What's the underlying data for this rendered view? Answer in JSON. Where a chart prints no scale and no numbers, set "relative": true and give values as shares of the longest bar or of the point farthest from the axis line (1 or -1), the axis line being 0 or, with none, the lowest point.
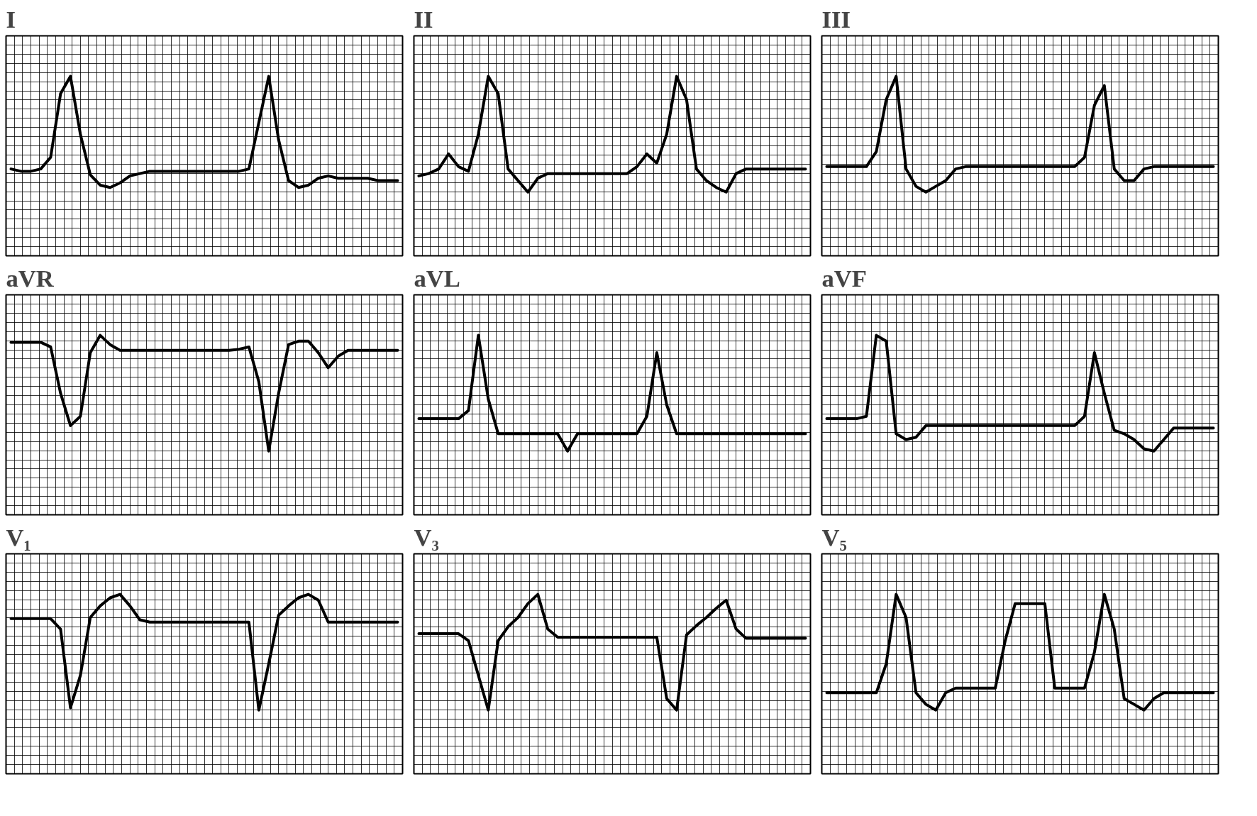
{
  "chart_data": [
    {
      "type": "line",
      "title": "I",
      "relative": true,
      "grid": true,
      "color": "#000000",
      "categories": [
        null,
        null,
        null,
        null,
        null,
        null,
        null,
        null,
        null,
        null,
        null,
        null,
        null,
        null,
        null,
        null,
        null,
        null,
        null,
        null,
        null,
        null,
        null,
        null,
        null,
        null,
        null,
        null,
        null,
        null,
        null,
        null,
        null,
        null,
        null,
        null,
        null,
        null,
        null,
        null
      ],
      "values": [
        0.2,
        0.18,
        0.18,
        0.2,
        0.3,
        0.85,
        1.0,
        0.5,
        0.15,
        0.06,
        0.04,
        0.08,
        0.14,
        0.16,
        0.18,
        0.18,
        0.18,
        0.18,
        0.18,
        0.18,
        0.18,
        0.18,
        0.18,
        0.18,
        0.2,
        0.6,
        1.0,
        0.45,
        0.1,
        0.04,
        0.06,
        0.12,
        0.14,
        0.12,
        0.12,
        0.12,
        0.12,
        0.1,
        0.1,
        0.1
      ]
    },
    {
      "type": "line",
      "title": "II",
      "relative": true,
      "grid": true,
      "color": "#000000",
      "categories": [
        null,
        null,
        null,
        null,
        null,
        null,
        null,
        null,
        null,
        null,
        null,
        null,
        null,
        null,
        null,
        null,
        null,
        null,
        null,
        null,
        null,
        null,
        null,
        null,
        null,
        null,
        null,
        null,
        null,
        null,
        null,
        null,
        null,
        null,
        null,
        null,
        null,
        null,
        null,
        null
      ],
      "values": [
        0.14,
        0.16,
        0.2,
        0.33,
        0.22,
        0.18,
        0.5,
        1.0,
        0.85,
        0.2,
        0.1,
        0.0,
        0.12,
        0.16,
        0.16,
        0.16,
        0.16,
        0.16,
        0.16,
        0.16,
        0.16,
        0.16,
        0.22,
        0.33,
        0.25,
        0.5,
        1.0,
        0.8,
        0.2,
        0.1,
        0.04,
        0.0,
        0.16,
        0.2,
        0.2,
        0.2,
        0.2,
        0.2,
        0.2,
        0.2
      ]
    },
    {
      "type": "line",
      "title": "III",
      "relative": true,
      "grid": true,
      "color": "#000000",
      "categories": [
        null,
        null,
        null,
        null,
        null,
        null,
        null,
        null,
        null,
        null,
        null,
        null,
        null,
        null,
        null,
        null,
        null,
        null,
        null,
        null,
        null,
        null,
        null,
        null,
        null,
        null,
        null,
        null,
        null,
        null,
        null,
        null,
        null,
        null,
        null,
        null,
        null,
        null,
        null,
        null
      ],
      "values": [
        0.22,
        0.22,
        0.22,
        0.22,
        0.22,
        0.35,
        0.8,
        1.0,
        0.2,
        0.05,
        0.0,
        0.05,
        0.1,
        0.2,
        0.22,
        0.22,
        0.22,
        0.22,
        0.22,
        0.22,
        0.22,
        0.22,
        0.22,
        0.22,
        0.22,
        0.22,
        0.3,
        0.75,
        0.92,
        0.2,
        0.1,
        0.1,
        0.2,
        0.22,
        0.22,
        0.22,
        0.22,
        0.22,
        0.22,
        0.22
      ]
    },
    {
      "type": "line",
      "title": "aVR",
      "relative": true,
      "grid": true,
      "color": "#000000",
      "categories": [
        null,
        null,
        null,
        null,
        null,
        null,
        null,
        null,
        null,
        null,
        null,
        null,
        null,
        null,
        null,
        null,
        null,
        null,
        null,
        null,
        null,
        null,
        null,
        null,
        null,
        null,
        null,
        null,
        null,
        null,
        null,
        null,
        null,
        null,
        null,
        null,
        null,
        null,
        null,
        null
      ],
      "values": [
        0.94,
        0.94,
        0.94,
        0.94,
        0.9,
        0.5,
        0.22,
        0.3,
        0.85,
        1.0,
        0.92,
        0.87,
        0.87,
        0.87,
        0.87,
        0.87,
        0.87,
        0.87,
        0.87,
        0.87,
        0.87,
        0.87,
        0.87,
        0.88,
        0.9,
        0.6,
        0.0,
        0.5,
        0.92,
        0.95,
        0.95,
        0.85,
        0.72,
        0.82,
        0.87,
        0.87,
        0.87,
        0.87,
        0.87,
        0.87
      ]
    },
    {
      "type": "line",
      "title": "aVL",
      "relative": true,
      "grid": true,
      "color": "#000000",
      "categories": [
        null,
        null,
        null,
        null,
        null,
        null,
        null,
        null,
        null,
        null,
        null,
        null,
        null,
        null,
        null,
        null,
        null,
        null,
        null,
        null,
        null,
        null,
        null,
        null,
        null,
        null,
        null,
        null,
        null,
        null,
        null,
        null,
        null,
        null,
        null,
        null,
        null,
        null,
        null,
        null
      ],
      "values": [
        0.28,
        0.28,
        0.28,
        0.28,
        0.28,
        0.35,
        1.0,
        0.45,
        0.15,
        0.15,
        0.15,
        0.15,
        0.15,
        0.15,
        0.15,
        0.0,
        0.15,
        0.15,
        0.15,
        0.15,
        0.15,
        0.15,
        0.15,
        0.3,
        0.85,
        0.4,
        0.15,
        0.15,
        0.15,
        0.15,
        0.15,
        0.15,
        0.15,
        0.15,
        0.15,
        0.15,
        0.15,
        0.15,
        0.15,
        0.15
      ]
    },
    {
      "type": "line",
      "title": "aVF",
      "relative": true,
      "grid": true,
      "color": "#000000",
      "categories": [
        null,
        null,
        null,
        null,
        null,
        null,
        null,
        null,
        null,
        null,
        null,
        null,
        null,
        null,
        null,
        null,
        null,
        null,
        null,
        null,
        null,
        null,
        null,
        null,
        null,
        null,
        null,
        null,
        null,
        null,
        null,
        null,
        null,
        null,
        null,
        null,
        null,
        null,
        null,
        null
      ],
      "values": [
        0.28,
        0.28,
        0.28,
        0.28,
        0.3,
        1.0,
        0.95,
        0.15,
        0.1,
        0.12,
        0.22,
        0.22,
        0.22,
        0.22,
        0.22,
        0.22,
        0.22,
        0.22,
        0.22,
        0.22,
        0.22,
        0.22,
        0.22,
        0.22,
        0.22,
        0.22,
        0.3,
        0.85,
        0.5,
        0.18,
        0.15,
        0.1,
        0.02,
        0.0,
        0.1,
        0.2,
        0.2,
        0.2,
        0.2,
        0.2
      ]
    },
    {
      "type": "line",
      "title": "V₁",
      "relative": true,
      "grid": true,
      "color": "#000000",
      "categories": [
        null,
        null,
        null,
        null,
        null,
        null,
        null,
        null,
        null,
        null,
        null,
        null,
        null,
        null,
        null,
        null,
        null,
        null,
        null,
        null,
        null,
        null,
        null,
        null,
        null,
        null,
        null,
        null,
        null,
        null,
        null,
        null,
        null,
        null,
        null,
        null,
        null,
        null,
        null,
        null
      ],
      "values": [
        0.79,
        0.79,
        0.79,
        0.79,
        0.79,
        0.7,
        0.02,
        0.3,
        0.8,
        0.9,
        0.97,
        1.0,
        0.9,
        0.78,
        0.76,
        0.76,
        0.76,
        0.76,
        0.76,
        0.76,
        0.76,
        0.76,
        0.76,
        0.76,
        0.76,
        0.0,
        0.4,
        0.82,
        0.9,
        0.97,
        1.0,
        0.95,
        0.76,
        0.76,
        0.76,
        0.76,
        0.76,
        0.76,
        0.76,
        0.76
      ]
    },
    {
      "type": "line",
      "title": "V₃",
      "relative": true,
      "grid": true,
      "color": "#000000",
      "categories": [
        null,
        null,
        null,
        null,
        null,
        null,
        null,
        null,
        null,
        null,
        null,
        null,
        null,
        null,
        null,
        null,
        null,
        null,
        null,
        null,
        null,
        null,
        null,
        null,
        null,
        null,
        null,
        null,
        null,
        null,
        null,
        null,
        null,
        null,
        null,
        null,
        null,
        null,
        null,
        null
      ],
      "values": [
        0.66,
        0.66,
        0.66,
        0.66,
        0.66,
        0.6,
        0.3,
        0.0,
        0.6,
        0.72,
        0.8,
        0.92,
        1.0,
        0.7,
        0.63,
        0.63,
        0.63,
        0.63,
        0.63,
        0.63,
        0.63,
        0.63,
        0.63,
        0.63,
        0.63,
        0.1,
        0.0,
        0.65,
        0.73,
        0.8,
        0.88,
        0.95,
        0.7,
        0.62,
        0.62,
        0.62,
        0.62,
        0.62,
        0.62,
        0.62
      ]
    },
    {
      "type": "line",
      "title": "V₅",
      "relative": true,
      "grid": true,
      "color": "#000000",
      "categories": [
        null,
        null,
        null,
        null,
        null,
        null,
        null,
        null,
        null,
        null,
        null,
        null,
        null,
        null,
        null,
        null,
        null,
        null,
        null,
        null,
        null,
        null,
        null,
        null,
        null,
        null,
        null,
        null,
        null,
        null,
        null,
        null,
        null,
        null,
        null,
        null,
        null,
        null,
        null,
        null
      ],
      "values": [
        0.15,
        0.15,
        0.15,
        0.15,
        0.15,
        0.15,
        0.4,
        1.0,
        0.8,
        0.15,
        0.05,
        0.0,
        0.15,
        0.19,
        0.19,
        0.19,
        0.19,
        0.19,
        0.6,
        0.92,
        0.92,
        0.92,
        0.92,
        0.19,
        0.19,
        0.19,
        0.19,
        0.5,
        1.0,
        0.7,
        0.1,
        0.05,
        0.0,
        0.1,
        0.15,
        0.15,
        0.15,
        0.15,
        0.15,
        0.15
      ]
    }
  ]
}
